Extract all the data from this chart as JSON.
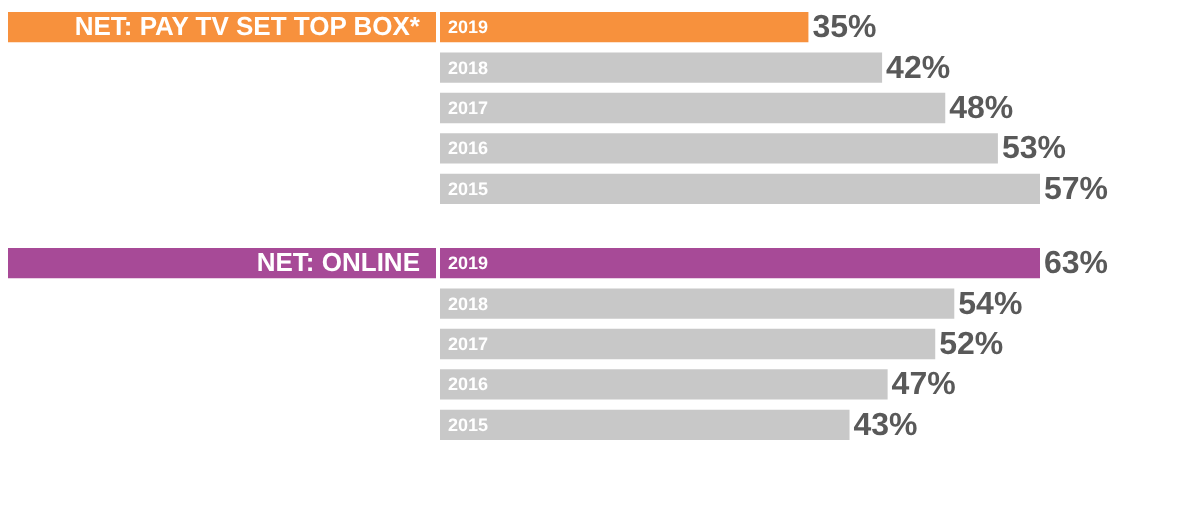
{
  "chart_data": [
    {
      "type": "bar",
      "orientation": "horizontal",
      "title": "NET: PAY TV SET TOP BOX*",
      "categories": [
        "2019",
        "2018",
        "2017",
        "2016",
        "2015"
      ],
      "values": [
        35,
        42,
        48,
        53,
        57
      ],
      "value_labels": [
        "35%",
        "42%",
        "48%",
        "53%",
        "57%"
      ],
      "colors": [
        "#f7913d",
        "#c8c8c8",
        "#c8c8c8",
        "#c8c8c8",
        "#c8c8c8"
      ]
    },
    {
      "type": "bar",
      "orientation": "horizontal",
      "title": "NET: ONLINE",
      "categories": [
        "2019",
        "2018",
        "2017",
        "2016",
        "2015"
      ],
      "values": [
        63,
        54,
        52,
        47,
        43
      ],
      "value_labels": [
        "63%",
        "54%",
        "52%",
        "47%",
        "43%"
      ],
      "colors": [
        "#a74a97",
        "#c8c8c8",
        "#c8c8c8",
        "#c8c8c8",
        "#c8c8c8"
      ]
    }
  ]
}
